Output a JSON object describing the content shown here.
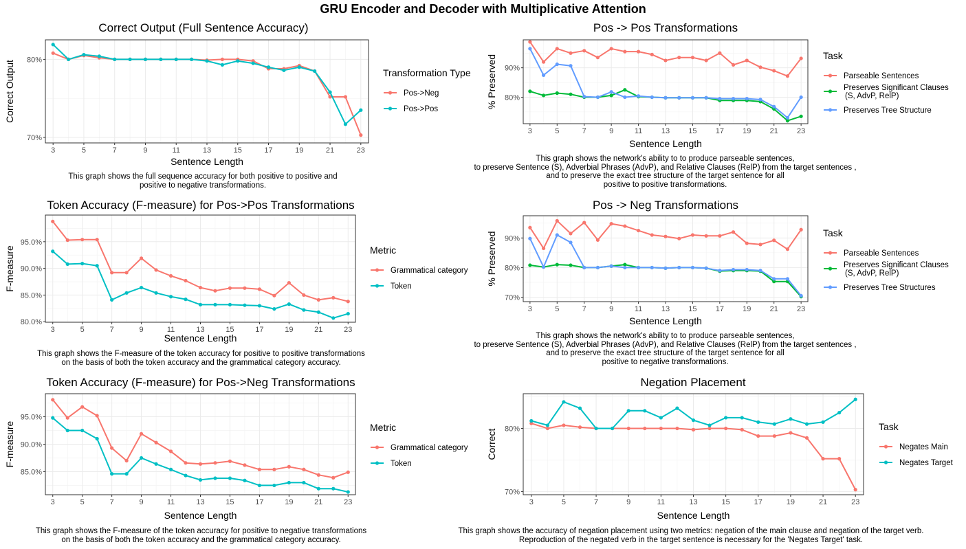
{
  "title": "GRU Encoder and Decoder with Multiplicative Attention",
  "chart_data": [
    {
      "id": "p1",
      "type": "line",
      "title": "Correct Output (Full Sentence Accuracy)",
      "xlabel": "Sentence Length",
      "ylabel": "Correct Output",
      "x": [
        3,
        4,
        5,
        6,
        7,
        8,
        9,
        10,
        11,
        12,
        13,
        14,
        15,
        16,
        17,
        18,
        19,
        20,
        21,
        22,
        23
      ],
      "xticks": [
        3,
        5,
        7,
        9,
        11,
        13,
        15,
        17,
        19,
        21,
        23
      ],
      "yticks": [
        70,
        80
      ],
      "yticklabels": [
        "70%",
        "80%"
      ],
      "ylim": [
        69.3,
        82.5
      ],
      "legend_title": "Transformation Type",
      "legend_position": "right",
      "series": [
        {
          "name": "Pos->Neg",
          "color": "#F8766D",
          "values": [
            80.8,
            80.0,
            80.5,
            80.2,
            80.0,
            80.0,
            80.0,
            80.0,
            80.0,
            80.0,
            79.9,
            80.0,
            80.0,
            79.8,
            78.8,
            78.8,
            79.2,
            78.5,
            75.2,
            75.2,
            70.3
          ]
        },
        {
          "name": "Pos->Pos",
          "color": "#00BFC4",
          "values": [
            81.9,
            80.0,
            80.6,
            80.4,
            80.0,
            80.0,
            80.0,
            80.0,
            80.0,
            80.0,
            79.8,
            79.3,
            79.8,
            79.5,
            79.0,
            78.6,
            79.0,
            78.5,
            75.8,
            71.7,
            73.5
          ]
        }
      ],
      "caption": "This graph shows the full sequence accuracy for both positive to positive and\npositive to negative transformations."
    },
    {
      "id": "p2",
      "type": "line",
      "title": "Pos -> Pos Transformations",
      "xlabel": "Sentence Length",
      "ylabel": "% Preserved",
      "x": [
        3,
        4,
        5,
        6,
        7,
        8,
        9,
        10,
        11,
        12,
        13,
        14,
        15,
        16,
        17,
        18,
        19,
        20,
        21,
        22,
        23
      ],
      "xticks": [
        3,
        5,
        7,
        9,
        11,
        13,
        15,
        17,
        19,
        21,
        23
      ],
      "yticks": [
        80,
        90
      ],
      "yticklabels": [
        "80%",
        "90%"
      ],
      "ylim": [
        71,
        99.5
      ],
      "legend_title": "Task",
      "legend_position": "right",
      "series": [
        {
          "name": "Parseable Sentences",
          "color": "#F8766D",
          "values": [
            98.8,
            92.0,
            96.5,
            95.0,
            95.8,
            93.5,
            96.5,
            95.5,
            95.5,
            94.5,
            92.5,
            93.5,
            93.5,
            92.5,
            95.0,
            91.0,
            92.5,
            90.2,
            89.0,
            87.2,
            93.2
          ]
        },
        {
          "name": "Preserves Significant Clauses\n(S, AdvP, RelP)",
          "color": "#00BA38",
          "values": [
            82.0,
            80.6,
            81.4,
            81.0,
            80.0,
            80.0,
            80.6,
            82.5,
            80.2,
            80.0,
            79.8,
            79.8,
            79.8,
            79.8,
            78.9,
            78.9,
            78.9,
            78.5,
            76.0,
            72.0,
            73.5
          ]
        },
        {
          "name": "Preserves Tree Structure",
          "color": "#619CFF",
          "values": [
            96.5,
            87.5,
            91.2,
            90.7,
            80.2,
            80.0,
            81.8,
            80.0,
            80.4,
            80.0,
            79.8,
            79.8,
            79.8,
            79.8,
            79.5,
            79.5,
            79.5,
            79.2,
            76.8,
            73.0,
            80.0
          ]
        }
      ],
      "caption": "This graph shows the network's ability to to produce parseable sentences,\nto preserve Sentence (S), Adverbial Phrases (AdvP), and Relative Clauses (RelP) from the target sentences ,\nand to preserve the exact tree structure of the target sentence for all\npositive to positive transformations."
    },
    {
      "id": "p3",
      "type": "line",
      "title": "Token Accuracy (F-measure) for Pos->Pos Transformations",
      "xlabel": "Sentence Length",
      "ylabel": "F-measure",
      "x": [
        3,
        4,
        5,
        6,
        7,
        8,
        9,
        10,
        11,
        12,
        13,
        14,
        15,
        16,
        17,
        18,
        19,
        20,
        21,
        22,
        23
      ],
      "xticks": [
        3,
        5,
        7,
        9,
        11,
        13,
        15,
        17,
        19,
        21,
        23
      ],
      "yticks": [
        80,
        85,
        90,
        95
      ],
      "yticklabels": [
        "80.0%",
        "85.0%",
        "90.0%",
        "95.0%"
      ],
      "ylim": [
        79.9,
        100
      ],
      "legend_title": "Metric",
      "legend_position": "right",
      "series": [
        {
          "name": "Grammatical category",
          "color": "#F8766D",
          "values": [
            98.8,
            95.3,
            95.4,
            95.4,
            89.2,
            89.2,
            91.9,
            89.7,
            88.6,
            87.7,
            86.4,
            85.8,
            86.3,
            86.3,
            86.1,
            84.9,
            87.3,
            85.0,
            84.1,
            84.5,
            83.8
          ]
        },
        {
          "name": "Token",
          "color": "#00BFC4",
          "values": [
            93.2,
            90.8,
            90.9,
            90.5,
            84.1,
            85.4,
            86.4,
            85.4,
            84.7,
            84.2,
            83.2,
            83.2,
            83.2,
            83.1,
            83.0,
            82.4,
            83.3,
            82.2,
            81.8,
            80.7,
            81.5
          ]
        }
      ],
      "caption": "This graph shows the F-measure of the token accuracy for positive to positive transformations\non the basis of both the token accuracy and the grammatical category accuracy."
    },
    {
      "id": "p4",
      "type": "line",
      "title": "Pos -> Neg Transformations",
      "xlabel": "Sentence Length",
      "ylabel": "% Preserved",
      "x": [
        3,
        4,
        5,
        6,
        7,
        8,
        9,
        10,
        11,
        12,
        13,
        14,
        15,
        16,
        17,
        18,
        19,
        20,
        21,
        22,
        23
      ],
      "xticks": [
        3,
        5,
        7,
        9,
        11,
        13,
        15,
        17,
        19,
        21,
        23
      ],
      "yticks": [
        70,
        80,
        90
      ],
      "yticklabels": [
        "70%",
        "80%",
        "90%"
      ],
      "ylim": [
        68.5,
        97.5
      ],
      "legend_title": "Task",
      "legend_position": "right",
      "series": [
        {
          "name": "Parseable Sentences",
          "color": "#F8766D",
          "values": [
            93.5,
            86.5,
            95.8,
            91.5,
            95.2,
            89.3,
            94.8,
            94.0,
            92.5,
            91.0,
            90.5,
            89.8,
            91.0,
            90.7,
            90.7,
            92.0,
            88.2,
            87.8,
            89.2,
            86.2,
            92.8
          ]
        },
        {
          "name": "Preserves Significant Clauses\n(S, AdvP, RelP)",
          "color": "#00BA38",
          "values": [
            80.8,
            80.2,
            81.0,
            80.8,
            80.0,
            80.0,
            80.5,
            81.0,
            80.0,
            80.0,
            79.8,
            80.0,
            80.0,
            79.8,
            78.8,
            79.0,
            79.0,
            78.8,
            75.3,
            75.3,
            70.2
          ]
        },
        {
          "name": "Preserves Tree Structures",
          "color": "#619CFF",
          "values": [
            89.8,
            80.2,
            91.0,
            88.5,
            80.0,
            80.0,
            80.5,
            80.0,
            80.0,
            80.0,
            79.8,
            80.0,
            80.0,
            79.8,
            79.0,
            79.3,
            79.3,
            79.0,
            76.2,
            76.2,
            70.5
          ]
        }
      ],
      "caption": "This graph shows the network's ability to to produce parseable sentences,\nto preserve Sentence (S), Adverbial Phrases (AdvP), and Relative Clauses (RelP) from the target sentences ,\nand to preserve the exact tree structure of the target sentence for all\npositive to negative transformations."
    },
    {
      "id": "p5",
      "type": "line",
      "title": "Token Accuracy (F-measure) for Pos->Neg Transformations",
      "xlabel": "Sentence Length",
      "ylabel": "F-measure",
      "x": [
        3,
        4,
        5,
        6,
        7,
        8,
        9,
        10,
        11,
        12,
        13,
        14,
        15,
        16,
        17,
        18,
        19,
        20,
        21,
        22,
        23
      ],
      "xticks": [
        3,
        5,
        7,
        9,
        11,
        13,
        15,
        17,
        19,
        21,
        23
      ],
      "yticks": [
        85,
        90,
        95
      ],
      "yticklabels": [
        "85.0%",
        "90.0%",
        "95.0%"
      ],
      "ylim": [
        80.8,
        99.2
      ],
      "legend_title": "Metric",
      "legend_position": "right",
      "series": [
        {
          "name": "Grammatical category",
          "color": "#F8766D",
          "values": [
            98.1,
            94.8,
            96.8,
            95.2,
            89.3,
            87.0,
            91.9,
            90.3,
            88.7,
            86.6,
            86.4,
            86.6,
            86.9,
            86.2,
            85.4,
            85.4,
            85.9,
            85.4,
            84.4,
            83.9,
            84.9
          ]
        },
        {
          "name": "Token",
          "color": "#00BFC4",
          "values": [
            94.8,
            92.5,
            92.5,
            91.0,
            84.6,
            84.6,
            87.5,
            86.4,
            85.4,
            84.3,
            83.5,
            83.8,
            83.8,
            83.4,
            82.5,
            82.5,
            83.0,
            83.0,
            81.9,
            81.9,
            81.3
          ]
        }
      ],
      "caption": "This graph shows the F-measure of the token accuracy for positive to negative transformations\non the basis of both the token accuracy and the grammatical category accuracy."
    },
    {
      "id": "p6",
      "type": "line",
      "title": "Negation Placement",
      "xlabel": "Sentence Length",
      "ylabel": "Correct",
      "x": [
        3,
        4,
        5,
        6,
        7,
        8,
        9,
        10,
        11,
        12,
        13,
        14,
        15,
        16,
        17,
        18,
        19,
        20,
        21,
        22,
        23
      ],
      "xticks": [
        3,
        5,
        7,
        9,
        11,
        13,
        15,
        17,
        19,
        21,
        23
      ],
      "yticks": [
        70,
        80
      ],
      "yticklabels": [
        "70%",
        "80%"
      ],
      "ylim": [
        69.5,
        85.5
      ],
      "legend_title": "Task",
      "legend_position": "right",
      "series": [
        {
          "name": "Negates Main",
          "color": "#F8766D",
          "values": [
            80.8,
            80.0,
            80.5,
            80.2,
            80.0,
            80.0,
            80.0,
            80.0,
            80.0,
            80.0,
            79.8,
            80.0,
            80.0,
            79.8,
            78.8,
            78.8,
            79.3,
            78.5,
            75.2,
            75.2,
            70.3
          ]
        },
        {
          "name": "Negates Target",
          "color": "#00BFC4",
          "values": [
            81.2,
            80.5,
            84.2,
            83.2,
            80.0,
            80.0,
            82.8,
            82.8,
            81.7,
            83.2,
            81.3,
            80.5,
            81.7,
            81.7,
            81.0,
            80.7,
            81.5,
            80.7,
            81.0,
            82.5,
            84.6
          ]
        }
      ],
      "caption": "This graph shows the accuracy of negation placement using two metrics: negation of the main clause and negation of the target verb.\nReproduction of the negated verb in the target sentence is necessary for the 'Negates Target' task."
    }
  ]
}
